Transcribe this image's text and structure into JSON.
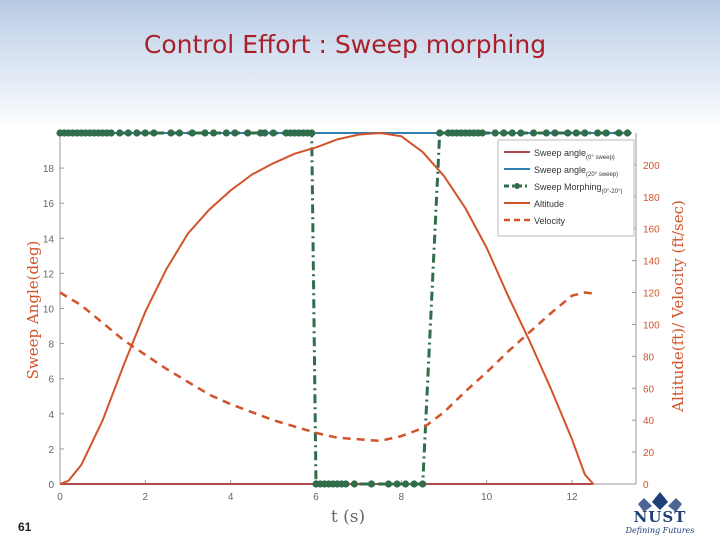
{
  "slide": {
    "title": "Control Effort : Sweep morphing",
    "page_number": "61",
    "logo_text": "NUST",
    "logo_tagline": "Defining Futures"
  },
  "colors": {
    "title": "#a8212a",
    "altitude": "#d2532a",
    "velocity": "#d2532a",
    "sweep_20": "#2f7fb2",
    "sweep_0": "#b04a4a",
    "sweep_morphing": "#2f6d4b",
    "logo": "#1f3f77"
  },
  "chart_data": {
    "type": "line",
    "title": "",
    "xlabel": "t (s)",
    "ylabel": "Sweep Angle(deg)",
    "y2label": "Altitude(ft)/ Velocity (ft/sec)",
    "xlim": [
      0,
      13.5
    ],
    "ylim": [
      0,
      20
    ],
    "y2lim": [
      0,
      220
    ],
    "x_ticks": [
      0,
      2,
      4,
      6,
      8,
      10,
      12
    ],
    "y_ticks": [
      0,
      2,
      4,
      6,
      8,
      10,
      12,
      14,
      16,
      18
    ],
    "y2_ticks": [
      0,
      20,
      40,
      60,
      80,
      100,
      120,
      140,
      160,
      180,
      200
    ],
    "legend": {
      "position": "top-right",
      "entries": [
        {
          "base": "Sweep angle",
          "sub": "(0° sweep)"
        },
        {
          "base": "Sweep angle",
          "sub": "(20° sweep)"
        },
        {
          "base": "Sweep Morphing",
          "sub": "(0°-20°)"
        },
        {
          "base": "Altitude",
          "sub": ""
        },
        {
          "base": "Velocity",
          "sub": ""
        }
      ]
    },
    "series": [
      {
        "name": "Sweep angle (0° sweep)",
        "axis": "left",
        "x": [
          0,
          12.5
        ],
        "y": [
          0,
          0
        ]
      },
      {
        "name": "Sweep angle (20° sweep)",
        "axis": "left",
        "x": [
          0,
          13.4
        ],
        "y": [
          20,
          20
        ]
      },
      {
        "name": "Sweep Morphing (0°-20°)",
        "axis": "left",
        "x": [
          0,
          5.9,
          6.0,
          8.5,
          8.9,
          13.4
        ],
        "y": [
          20,
          20,
          0,
          0,
          20,
          20
        ],
        "marker_x": [
          0,
          0.1,
          0.2,
          0.3,
          0.4,
          0.5,
          0.6,
          0.7,
          0.8,
          0.9,
          1.0,
          1.1,
          1.2,
          1.4,
          1.6,
          1.8,
          2.0,
          2.2,
          2.6,
          2.8,
          3.1,
          3.4,
          3.6,
          3.9,
          4.1,
          4.4,
          4.7,
          4.8,
          5.0,
          5.3,
          5.4,
          5.5,
          5.6,
          5.7,
          5.8,
          5.9,
          6.0,
          6.1,
          6.2,
          6.3,
          6.4,
          6.5,
          6.6,
          6.7,
          6.9,
          7.3,
          7.7,
          7.9,
          8.1,
          8.3,
          8.5,
          8.9,
          9.1,
          9.2,
          9.3,
          9.4,
          9.5,
          9.6,
          9.7,
          9.8,
          9.9,
          10.2,
          10.4,
          10.6,
          10.8,
          11.1,
          11.4,
          11.6,
          11.9,
          12.1,
          12.3,
          12.6,
          12.8,
          13.1,
          13.3
        ],
        "marker_y": [
          20,
          20,
          20,
          20,
          20,
          20,
          20,
          20,
          20,
          20,
          20,
          20,
          20,
          20,
          20,
          20,
          20,
          20,
          20,
          20,
          20,
          20,
          20,
          20,
          20,
          20,
          20,
          20,
          20,
          20,
          20,
          20,
          20,
          20,
          20,
          20,
          0,
          0,
          0,
          0,
          0,
          0,
          0,
          0,
          0,
          0,
          0,
          0,
          0,
          0,
          0,
          20,
          20,
          20,
          20,
          20,
          20,
          20,
          20,
          20,
          20,
          20,
          20,
          20,
          20,
          20,
          20,
          20,
          20,
          20,
          20,
          20,
          20,
          20,
          20
        ]
      },
      {
        "name": "Altitude",
        "axis": "right",
        "x": [
          0,
          0.2,
          0.5,
          1.0,
          1.5,
          2.0,
          2.5,
          3.0,
          3.5,
          4.0,
          4.5,
          5.0,
          5.5,
          6.0,
          6.5,
          7.0,
          7.5,
          8.0,
          8.5,
          9.0,
          9.5,
          10.0,
          10.5,
          11.0,
          11.5,
          12.0,
          12.3,
          12.5
        ],
        "y": [
          0,
          2,
          12,
          40,
          75,
          108,
          135,
          157,
          172,
          184,
          194,
          201,
          207,
          211,
          216,
          219,
          220,
          218,
          208,
          193,
          173,
          148,
          118,
          90,
          60,
          28,
          6,
          0
        ]
      },
      {
        "name": "Velocity",
        "axis": "right",
        "x": [
          0,
          0.5,
          1.0,
          1.5,
          2.0,
          2.5,
          3.0,
          3.5,
          4.0,
          4.5,
          5.0,
          5.5,
          6.0,
          6.5,
          7.0,
          7.5,
          8.0,
          8.5,
          9.0,
          9.5,
          10.0,
          10.5,
          11.0,
          11.5,
          12.0,
          12.3,
          12.6
        ],
        "y": [
          120,
          112,
          101,
          90,
          81,
          72,
          64,
          56,
          50,
          45,
          40,
          36,
          32,
          29,
          28,
          27,
          30,
          35,
          45,
          58,
          70,
          83,
          95,
          107,
          118,
          120,
          119
        ]
      }
    ]
  }
}
